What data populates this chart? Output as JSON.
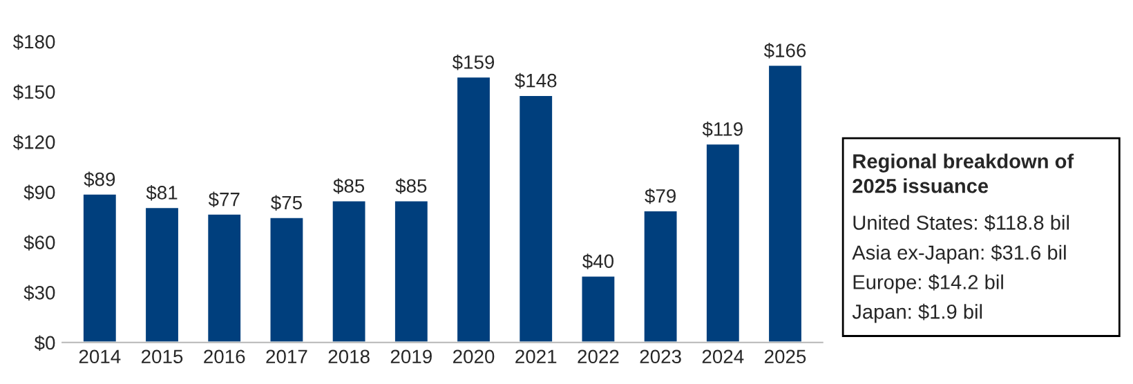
{
  "chart_data": {
    "type": "bar",
    "categories": [
      "2014",
      "2015",
      "2016",
      "2017",
      "2018",
      "2019",
      "2020",
      "2021",
      "2022",
      "2023",
      "2024",
      "2025"
    ],
    "values": [
      89,
      81,
      77,
      75,
      85,
      85,
      159,
      148,
      40,
      79,
      119,
      166
    ],
    "value_labels": [
      "$89",
      "$81",
      "$77",
      "$75",
      "$85",
      "$85",
      "$159",
      "$148",
      "$40",
      "$79",
      "$119",
      "$166"
    ],
    "color": "#003f7d",
    "ylim": [
      0,
      180
    ],
    "yticks": [
      {
        "value": 0,
        "label": "$0"
      },
      {
        "value": 30,
        "label": "$30"
      },
      {
        "value": 60,
        "label": "$60"
      },
      {
        "value": 90,
        "label": "$90"
      },
      {
        "value": 120,
        "label": "$120"
      },
      {
        "value": 150,
        "label": "$150"
      },
      {
        "value": 180,
        "label": "$180"
      }
    ],
    "grid": false,
    "annotations": [
      "Regional breakdown of\n2025 issuance",
      "United States: $118.8 bil",
      "Asia ex-Japan: $31.6 bil",
      "Europe: $14.2 bil",
      "Japan: $1.9 bil"
    ]
  }
}
